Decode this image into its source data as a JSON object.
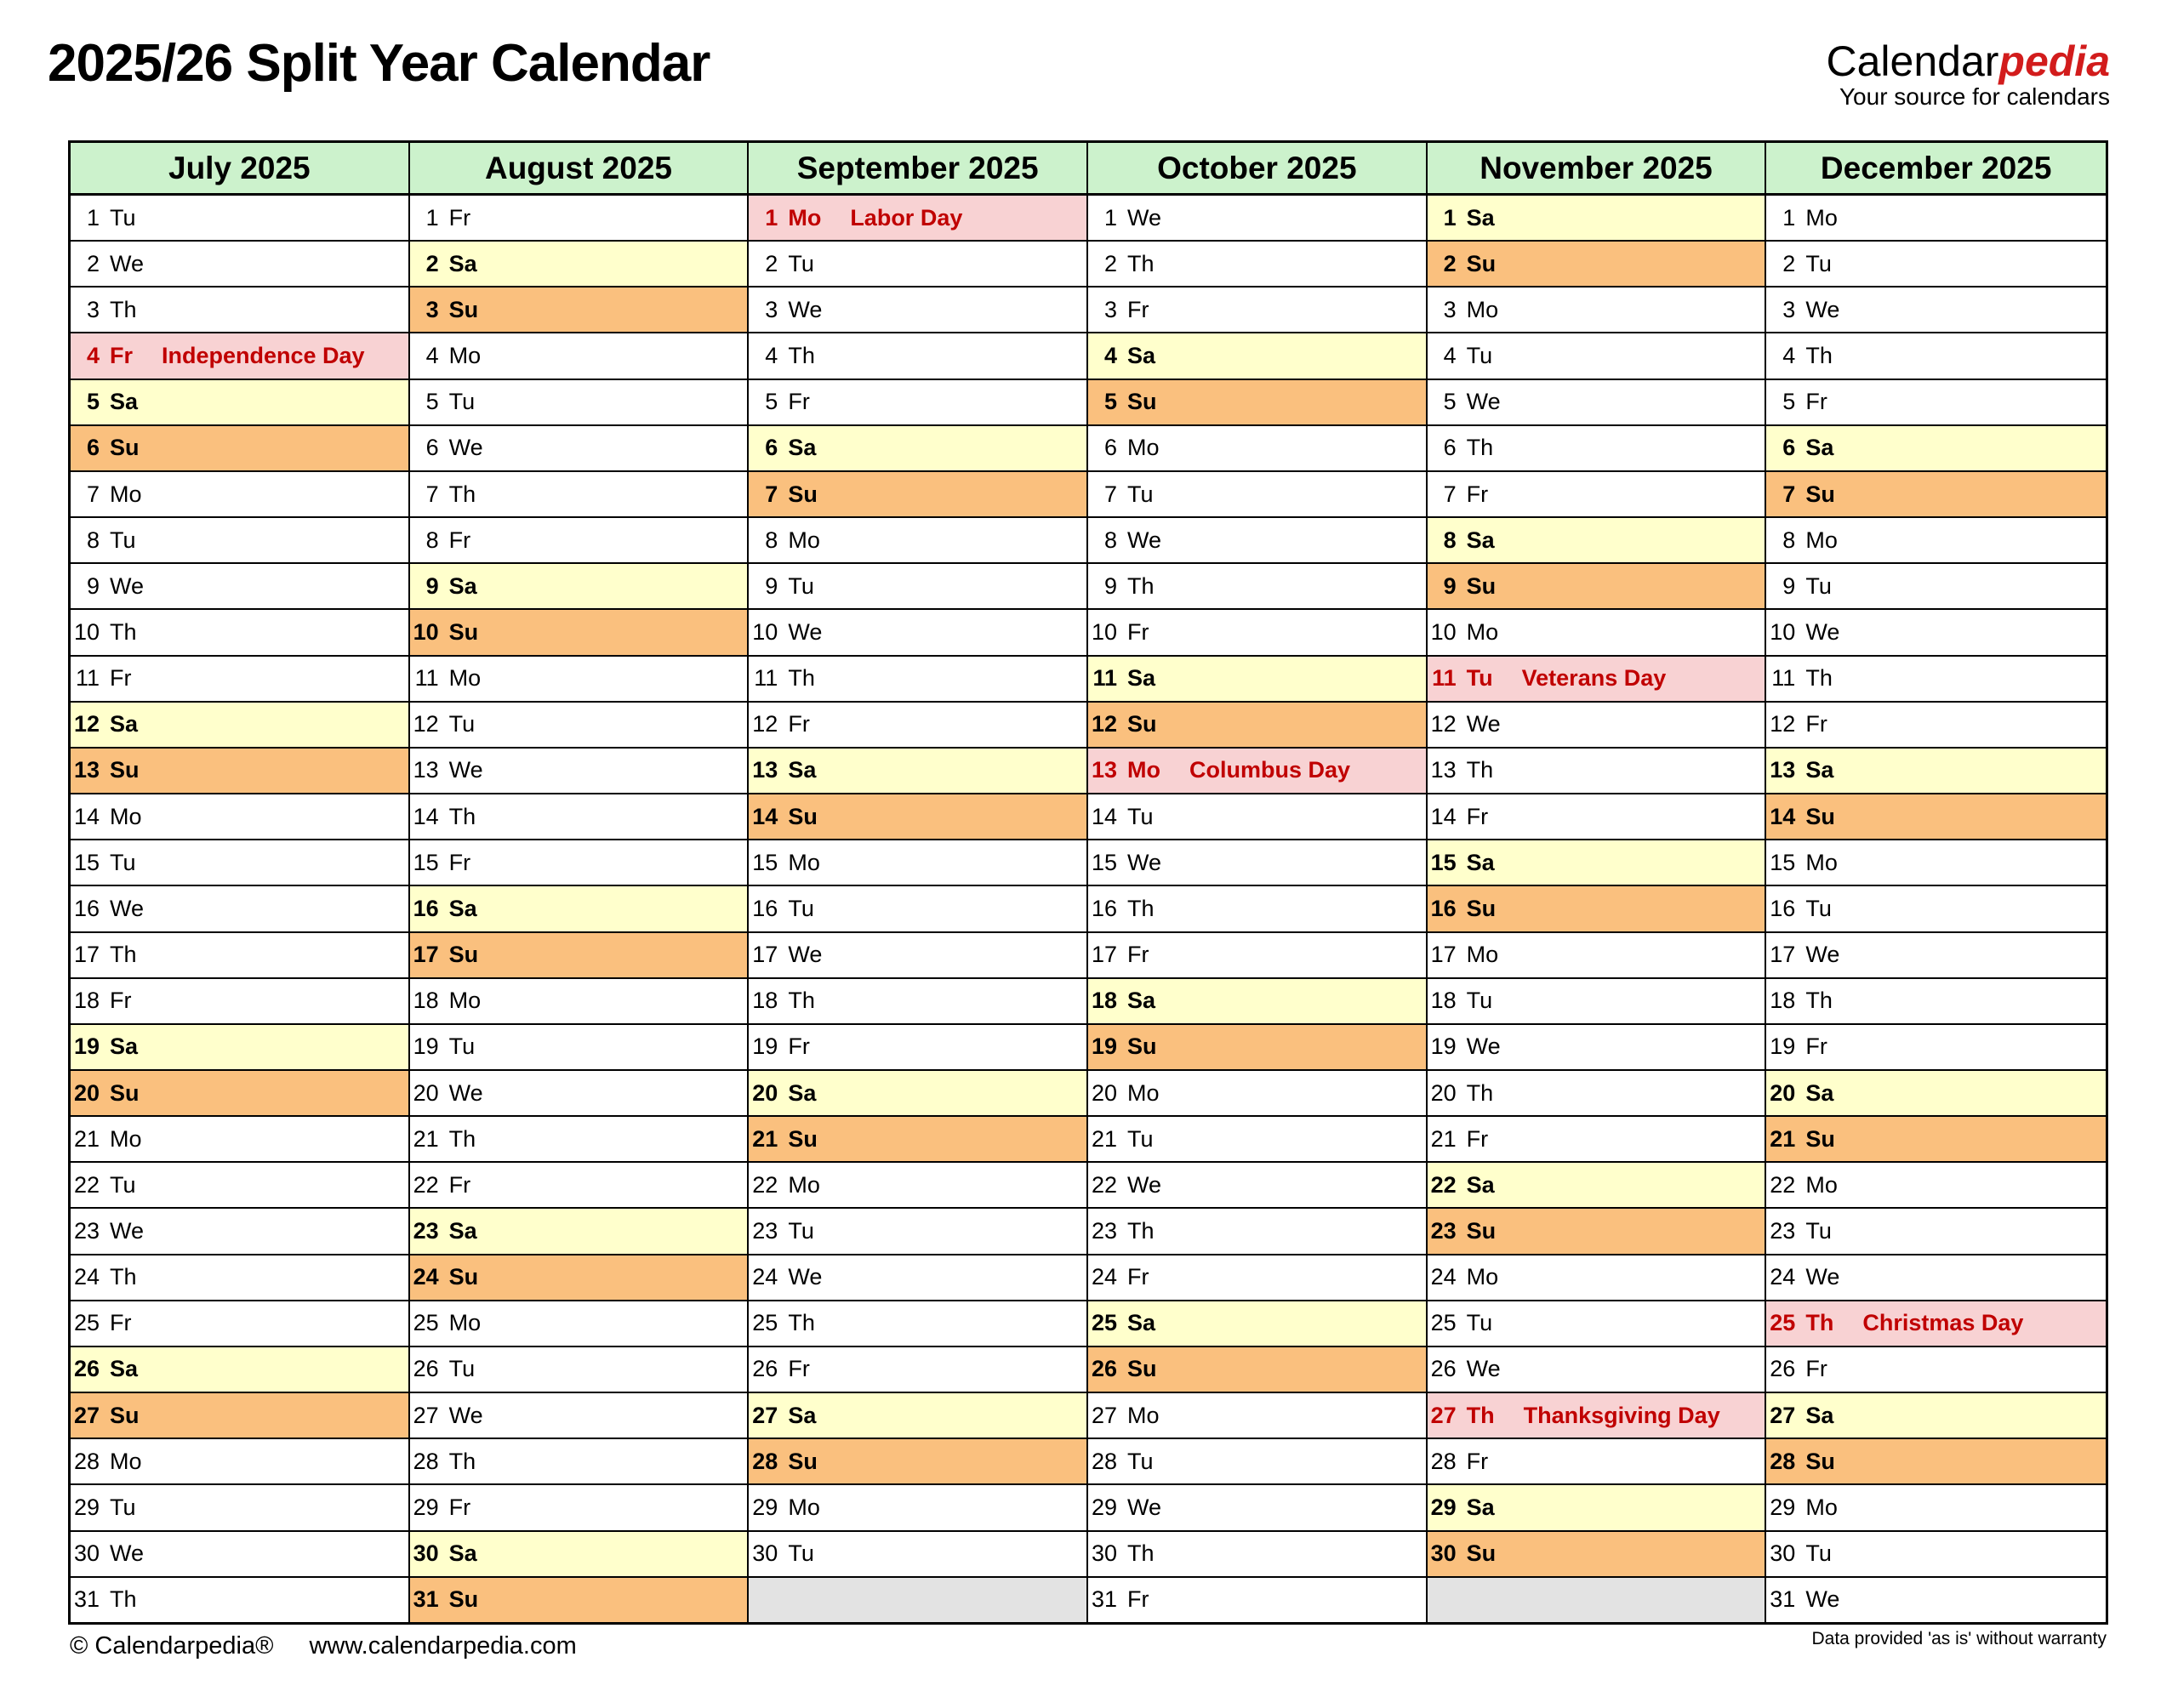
{
  "page": {
    "title": "2025/26 Split Year Calendar",
    "logo": {
      "name_black": "Calendar",
      "name_red": "pedia",
      "tagline": "Your source for calendars"
    },
    "footer": {
      "copyright": "© Calendarpedia®",
      "url": "www.calendarpedia.com",
      "disclaimer": "Data provided 'as is' without warranty"
    }
  },
  "colors": {
    "header_green": "#ccf2cc",
    "saturday_yellow": "#ffffcc",
    "sunday_orange": "#fac07e",
    "holiday_pink": "#f8d2d3",
    "holiday_red": "#c00000",
    "empty_gray": "#e3e3e3",
    "logo_red": "#d21c1c"
  },
  "calendar": {
    "row_count": 31,
    "months": [
      {
        "name": "July 2025",
        "days": [
          {
            "num": 1,
            "wd": "Tu"
          },
          {
            "num": 2,
            "wd": "We"
          },
          {
            "num": 3,
            "wd": "Th"
          },
          {
            "num": 4,
            "wd": "Fr",
            "holiday": "Independence Day"
          },
          {
            "num": 5,
            "wd": "Sa"
          },
          {
            "num": 6,
            "wd": "Su"
          },
          {
            "num": 7,
            "wd": "Mo"
          },
          {
            "num": 8,
            "wd": "Tu"
          },
          {
            "num": 9,
            "wd": "We"
          },
          {
            "num": 10,
            "wd": "Th"
          },
          {
            "num": 11,
            "wd": "Fr"
          },
          {
            "num": 12,
            "wd": "Sa"
          },
          {
            "num": 13,
            "wd": "Su"
          },
          {
            "num": 14,
            "wd": "Mo"
          },
          {
            "num": 15,
            "wd": "Tu"
          },
          {
            "num": 16,
            "wd": "We"
          },
          {
            "num": 17,
            "wd": "Th"
          },
          {
            "num": 18,
            "wd": "Fr"
          },
          {
            "num": 19,
            "wd": "Sa"
          },
          {
            "num": 20,
            "wd": "Su"
          },
          {
            "num": 21,
            "wd": "Mo"
          },
          {
            "num": 22,
            "wd": "Tu"
          },
          {
            "num": 23,
            "wd": "We"
          },
          {
            "num": 24,
            "wd": "Th"
          },
          {
            "num": 25,
            "wd": "Fr"
          },
          {
            "num": 26,
            "wd": "Sa"
          },
          {
            "num": 27,
            "wd": "Su"
          },
          {
            "num": 28,
            "wd": "Mo"
          },
          {
            "num": 29,
            "wd": "Tu"
          },
          {
            "num": 30,
            "wd": "We"
          },
          {
            "num": 31,
            "wd": "Th"
          }
        ]
      },
      {
        "name": "August 2025",
        "days": [
          {
            "num": 1,
            "wd": "Fr"
          },
          {
            "num": 2,
            "wd": "Sa"
          },
          {
            "num": 3,
            "wd": "Su"
          },
          {
            "num": 4,
            "wd": "Mo"
          },
          {
            "num": 5,
            "wd": "Tu"
          },
          {
            "num": 6,
            "wd": "We"
          },
          {
            "num": 7,
            "wd": "Th"
          },
          {
            "num": 8,
            "wd": "Fr"
          },
          {
            "num": 9,
            "wd": "Sa"
          },
          {
            "num": 10,
            "wd": "Su"
          },
          {
            "num": 11,
            "wd": "Mo"
          },
          {
            "num": 12,
            "wd": "Tu"
          },
          {
            "num": 13,
            "wd": "We"
          },
          {
            "num": 14,
            "wd": "Th"
          },
          {
            "num": 15,
            "wd": "Fr"
          },
          {
            "num": 16,
            "wd": "Sa"
          },
          {
            "num": 17,
            "wd": "Su"
          },
          {
            "num": 18,
            "wd": "Mo"
          },
          {
            "num": 19,
            "wd": "Tu"
          },
          {
            "num": 20,
            "wd": "We"
          },
          {
            "num": 21,
            "wd": "Th"
          },
          {
            "num": 22,
            "wd": "Fr"
          },
          {
            "num": 23,
            "wd": "Sa"
          },
          {
            "num": 24,
            "wd": "Su"
          },
          {
            "num": 25,
            "wd": "Mo"
          },
          {
            "num": 26,
            "wd": "Tu"
          },
          {
            "num": 27,
            "wd": "We"
          },
          {
            "num": 28,
            "wd": "Th"
          },
          {
            "num": 29,
            "wd": "Fr"
          },
          {
            "num": 30,
            "wd": "Sa"
          },
          {
            "num": 31,
            "wd": "Su"
          }
        ]
      },
      {
        "name": "September 2025",
        "days": [
          {
            "num": 1,
            "wd": "Mo",
            "holiday": "Labor Day"
          },
          {
            "num": 2,
            "wd": "Tu"
          },
          {
            "num": 3,
            "wd": "We"
          },
          {
            "num": 4,
            "wd": "Th"
          },
          {
            "num": 5,
            "wd": "Fr"
          },
          {
            "num": 6,
            "wd": "Sa"
          },
          {
            "num": 7,
            "wd": "Su"
          },
          {
            "num": 8,
            "wd": "Mo"
          },
          {
            "num": 9,
            "wd": "Tu"
          },
          {
            "num": 10,
            "wd": "We"
          },
          {
            "num": 11,
            "wd": "Th"
          },
          {
            "num": 12,
            "wd": "Fr"
          },
          {
            "num": 13,
            "wd": "Sa"
          },
          {
            "num": 14,
            "wd": "Su"
          },
          {
            "num": 15,
            "wd": "Mo"
          },
          {
            "num": 16,
            "wd": "Tu"
          },
          {
            "num": 17,
            "wd": "We"
          },
          {
            "num": 18,
            "wd": "Th"
          },
          {
            "num": 19,
            "wd": "Fr"
          },
          {
            "num": 20,
            "wd": "Sa"
          },
          {
            "num": 21,
            "wd": "Su"
          },
          {
            "num": 22,
            "wd": "Mo"
          },
          {
            "num": 23,
            "wd": "Tu"
          },
          {
            "num": 24,
            "wd": "We"
          },
          {
            "num": 25,
            "wd": "Th"
          },
          {
            "num": 26,
            "wd": "Fr"
          },
          {
            "num": 27,
            "wd": "Sa"
          },
          {
            "num": 28,
            "wd": "Su"
          },
          {
            "num": 29,
            "wd": "Mo"
          },
          {
            "num": 30,
            "wd": "Tu"
          },
          {
            "empty": true
          }
        ]
      },
      {
        "name": "October 2025",
        "days": [
          {
            "num": 1,
            "wd": "We"
          },
          {
            "num": 2,
            "wd": "Th"
          },
          {
            "num": 3,
            "wd": "Fr"
          },
          {
            "num": 4,
            "wd": "Sa"
          },
          {
            "num": 5,
            "wd": "Su"
          },
          {
            "num": 6,
            "wd": "Mo"
          },
          {
            "num": 7,
            "wd": "Tu"
          },
          {
            "num": 8,
            "wd": "We"
          },
          {
            "num": 9,
            "wd": "Th"
          },
          {
            "num": 10,
            "wd": "Fr"
          },
          {
            "num": 11,
            "wd": "Sa"
          },
          {
            "num": 12,
            "wd": "Su"
          },
          {
            "num": 13,
            "wd": "Mo",
            "holiday": "Columbus Day"
          },
          {
            "num": 14,
            "wd": "Tu"
          },
          {
            "num": 15,
            "wd": "We"
          },
          {
            "num": 16,
            "wd": "Th"
          },
          {
            "num": 17,
            "wd": "Fr"
          },
          {
            "num": 18,
            "wd": "Sa"
          },
          {
            "num": 19,
            "wd": "Su"
          },
          {
            "num": 20,
            "wd": "Mo"
          },
          {
            "num": 21,
            "wd": "Tu"
          },
          {
            "num": 22,
            "wd": "We"
          },
          {
            "num": 23,
            "wd": "Th"
          },
          {
            "num": 24,
            "wd": "Fr"
          },
          {
            "num": 25,
            "wd": "Sa"
          },
          {
            "num": 26,
            "wd": "Su"
          },
          {
            "num": 27,
            "wd": "Mo"
          },
          {
            "num": 28,
            "wd": "Tu"
          },
          {
            "num": 29,
            "wd": "We"
          },
          {
            "num": 30,
            "wd": "Th"
          },
          {
            "num": 31,
            "wd": "Fr"
          }
        ]
      },
      {
        "name": "November 2025",
        "days": [
          {
            "num": 1,
            "wd": "Sa"
          },
          {
            "num": 2,
            "wd": "Su"
          },
          {
            "num": 3,
            "wd": "Mo"
          },
          {
            "num": 4,
            "wd": "Tu"
          },
          {
            "num": 5,
            "wd": "We"
          },
          {
            "num": 6,
            "wd": "Th"
          },
          {
            "num": 7,
            "wd": "Fr"
          },
          {
            "num": 8,
            "wd": "Sa"
          },
          {
            "num": 9,
            "wd": "Su"
          },
          {
            "num": 10,
            "wd": "Mo"
          },
          {
            "num": 11,
            "wd": "Tu",
            "holiday": "Veterans Day"
          },
          {
            "num": 12,
            "wd": "We"
          },
          {
            "num": 13,
            "wd": "Th"
          },
          {
            "num": 14,
            "wd": "Fr"
          },
          {
            "num": 15,
            "wd": "Sa"
          },
          {
            "num": 16,
            "wd": "Su"
          },
          {
            "num": 17,
            "wd": "Mo"
          },
          {
            "num": 18,
            "wd": "Tu"
          },
          {
            "num": 19,
            "wd": "We"
          },
          {
            "num": 20,
            "wd": "Th"
          },
          {
            "num": 21,
            "wd": "Fr"
          },
          {
            "num": 22,
            "wd": "Sa"
          },
          {
            "num": 23,
            "wd": "Su"
          },
          {
            "num": 24,
            "wd": "Mo"
          },
          {
            "num": 25,
            "wd": "Tu"
          },
          {
            "num": 26,
            "wd": "We"
          },
          {
            "num": 27,
            "wd": "Th",
            "holiday": "Thanksgiving Day"
          },
          {
            "num": 28,
            "wd": "Fr"
          },
          {
            "num": 29,
            "wd": "Sa"
          },
          {
            "num": 30,
            "wd": "Su"
          },
          {
            "empty": true
          }
        ]
      },
      {
        "name": "December 2025",
        "days": [
          {
            "num": 1,
            "wd": "Mo"
          },
          {
            "num": 2,
            "wd": "Tu"
          },
          {
            "num": 3,
            "wd": "We"
          },
          {
            "num": 4,
            "wd": "Th"
          },
          {
            "num": 5,
            "wd": "Fr"
          },
          {
            "num": 6,
            "wd": "Sa"
          },
          {
            "num": 7,
            "wd": "Su"
          },
          {
            "num": 8,
            "wd": "Mo"
          },
          {
            "num": 9,
            "wd": "Tu"
          },
          {
            "num": 10,
            "wd": "We"
          },
          {
            "num": 11,
            "wd": "Th"
          },
          {
            "num": 12,
            "wd": "Fr"
          },
          {
            "num": 13,
            "wd": "Sa"
          },
          {
            "num": 14,
            "wd": "Su"
          },
          {
            "num": 15,
            "wd": "Mo"
          },
          {
            "num": 16,
            "wd": "Tu"
          },
          {
            "num": 17,
            "wd": "We"
          },
          {
            "num": 18,
            "wd": "Th"
          },
          {
            "num": 19,
            "wd": "Fr"
          },
          {
            "num": 20,
            "wd": "Sa"
          },
          {
            "num": 21,
            "wd": "Su"
          },
          {
            "num": 22,
            "wd": "Mo"
          },
          {
            "num": 23,
            "wd": "Tu"
          },
          {
            "num": 24,
            "wd": "We"
          },
          {
            "num": 25,
            "wd": "Th",
            "holiday": "Christmas Day"
          },
          {
            "num": 26,
            "wd": "Fr"
          },
          {
            "num": 27,
            "wd": "Sa"
          },
          {
            "num": 28,
            "wd": "Su"
          },
          {
            "num": 29,
            "wd": "Mo"
          },
          {
            "num": 30,
            "wd": "Tu"
          },
          {
            "num": 31,
            "wd": "We"
          }
        ]
      }
    ]
  }
}
